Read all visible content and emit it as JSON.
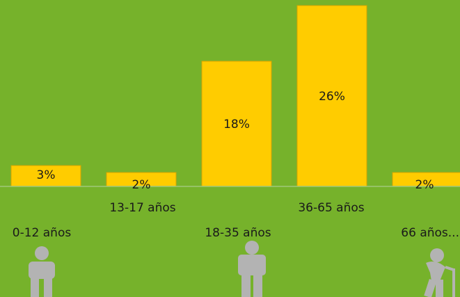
{
  "chart_data": {
    "type": "bar",
    "categories": [
      "0-12 años",
      "13-17 años",
      "18-35 años",
      "36-65 años",
      "66 años..."
    ],
    "values": [
      3,
      2,
      18,
      26,
      2
    ],
    "data_labels": [
      "3%",
      "2%",
      "18%",
      "26%",
      "2%"
    ],
    "title": "",
    "xlabel": "",
    "ylabel": "",
    "ylim": [
      0,
      26
    ],
    "grid": false,
    "legend": "none",
    "colors": {
      "background": "#76b22b",
      "bar_fill": "#ffcc00",
      "bar_stroke": "#d6a400",
      "baseline": "#9fc77a",
      "label_text": "#1a1a1a",
      "icon": "#b3b3b3"
    }
  },
  "icons": [
    "child-person-icon",
    "adult-person-icon",
    "elderly-person-with-cane-icon"
  ]
}
